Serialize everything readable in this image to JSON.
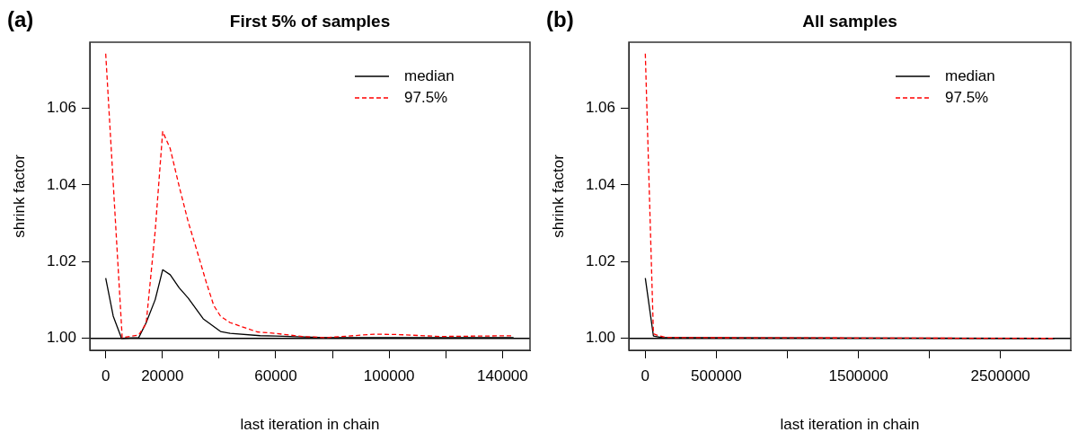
{
  "chart_data": [
    {
      "type": "line",
      "title": "First 5% of samples",
      "xlabel": "last iteration in chain",
      "ylabel": "shrink factor",
      "annotations": [
        "(a)"
      ],
      "legend": "top right",
      "marker": "none",
      "xlim": [
        -5600,
        149700
      ],
      "ylim": [
        0.9969,
        1.0772
      ],
      "xticks": [
        0,
        20000,
        {
          "value": 40000,
          "label": null
        },
        60000,
        {
          "value": 80000,
          "label": null
        },
        100000,
        {
          "value": 120000,
          "label": null
        },
        140000
      ],
      "yticks": [
        {
          "value": 1.0,
          "label": "1.00"
        },
        {
          "value": 1.02,
          "label": "1.02"
        },
        {
          "value": 1.04,
          "label": "1.04"
        },
        {
          "value": 1.06,
          "label": "1.06"
        }
      ],
      "ref_lines": [
        {
          "axis": "y",
          "value": 1.0,
          "color": "#000000"
        }
      ],
      "series": [
        {
          "name": "median",
          "color": "#000000",
          "line_style": "solid",
          "x": [
            0,
            2650,
            5600,
            11640,
            14280,
            17460,
            20100,
            22750,
            25900,
            29100,
            34400,
            40500,
            43900,
            54500,
            59800,
            77800,
            143900
          ],
          "values": [
            1.0157,
            1.0058,
            1.0,
            1.0002,
            1.0041,
            1.0101,
            1.0179,
            1.0166,
            1.0132,
            1.0105,
            1.0051,
            1.0018,
            1.0013,
            1.0007,
            1.0006,
            1.0002,
            1.0002
          ]
        },
        {
          "name": "97.5%",
          "color": "#ff0000",
          "line_style": "dashed",
          "x": [
            0,
            5820,
            11640,
            14280,
            17460,
            20100,
            22750,
            25900,
            29100,
            32300,
            35400,
            38100,
            40500,
            43900,
            53400,
            59800,
            69300,
            77800,
            94700,
            103200,
            118000,
            143900
          ],
          "values": [
            1.0742,
            1.0002,
            1.0009,
            1.0039,
            1.028,
            1.0539,
            1.0495,
            1.0397,
            1.0304,
            1.0226,
            1.0148,
            1.0086,
            1.0058,
            1.0041,
            1.0017,
            1.0013,
            1.0005,
            1.0002,
            1.0011,
            1.001,
            1.0005,
            1.0007
          ]
        }
      ]
    },
    {
      "type": "line",
      "title": "All samples",
      "xlabel": "last iteration in chain",
      "ylabel": "shrink factor",
      "annotations": [
        "(b)"
      ],
      "legend": "top right",
      "marker": "none",
      "xlim": [
        -116000,
        2995000
      ],
      "ylim": [
        0.9969,
        1.0772
      ],
      "xticks": [
        0,
        500000,
        {
          "value": 1000000,
          "label": null
        },
        1500000,
        {
          "value": 2000000,
          "label": null
        },
        2500000
      ],
      "yticks": [
        {
          "value": 1.0,
          "label": "1.00"
        },
        {
          "value": 1.02,
          "label": "1.02"
        },
        {
          "value": 1.04,
          "label": "1.04"
        },
        {
          "value": 1.06,
          "label": "1.06"
        }
      ],
      "ref_lines": [
        {
          "axis": "y",
          "value": 1.0,
          "color": "#000000"
        }
      ],
      "series": [
        {
          "name": "median",
          "color": "#000000",
          "line_style": "solid",
          "x": [
            0,
            57100,
            120000,
            2880000
          ],
          "values": [
            1.0157,
            1.0006,
            1.0002,
            1.0
          ]
        },
        {
          "name": "97.5%",
          "color": "#ff0000",
          "line_style": "dashed",
          "x": [
            0,
            57100,
            78300,
            141600,
            247000,
            2880000
          ],
          "values": [
            1.0742,
            1.0012,
            1.0009,
            1.0003,
            1.0002,
            1.0
          ]
        }
      ]
    }
  ]
}
